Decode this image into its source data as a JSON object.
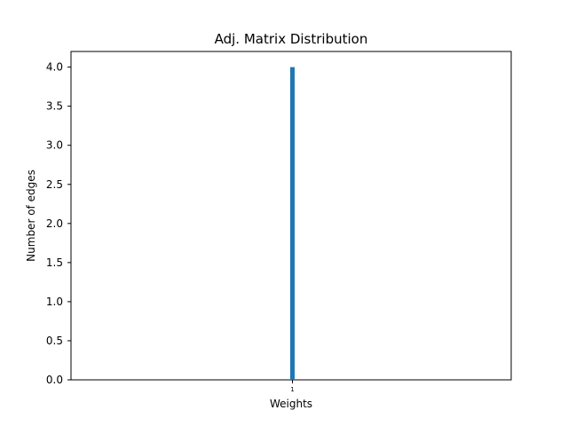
{
  "chart_data": {
    "type": "bar",
    "title": "Adj. Matrix Distribution",
    "xlabel": "Weights",
    "ylabel": "Number of edges",
    "categories": [
      "1"
    ],
    "values": [
      4.0
    ],
    "ylim": [
      0,
      4.2
    ],
    "yticks": [
      "0.0",
      "0.5",
      "1.0",
      "1.5",
      "2.0",
      "2.5",
      "3.0",
      "3.5",
      "4.0"
    ],
    "xticks": [
      "1"
    ],
    "grid": false,
    "legend": "none",
    "bar_color": "#1f77b4"
  }
}
